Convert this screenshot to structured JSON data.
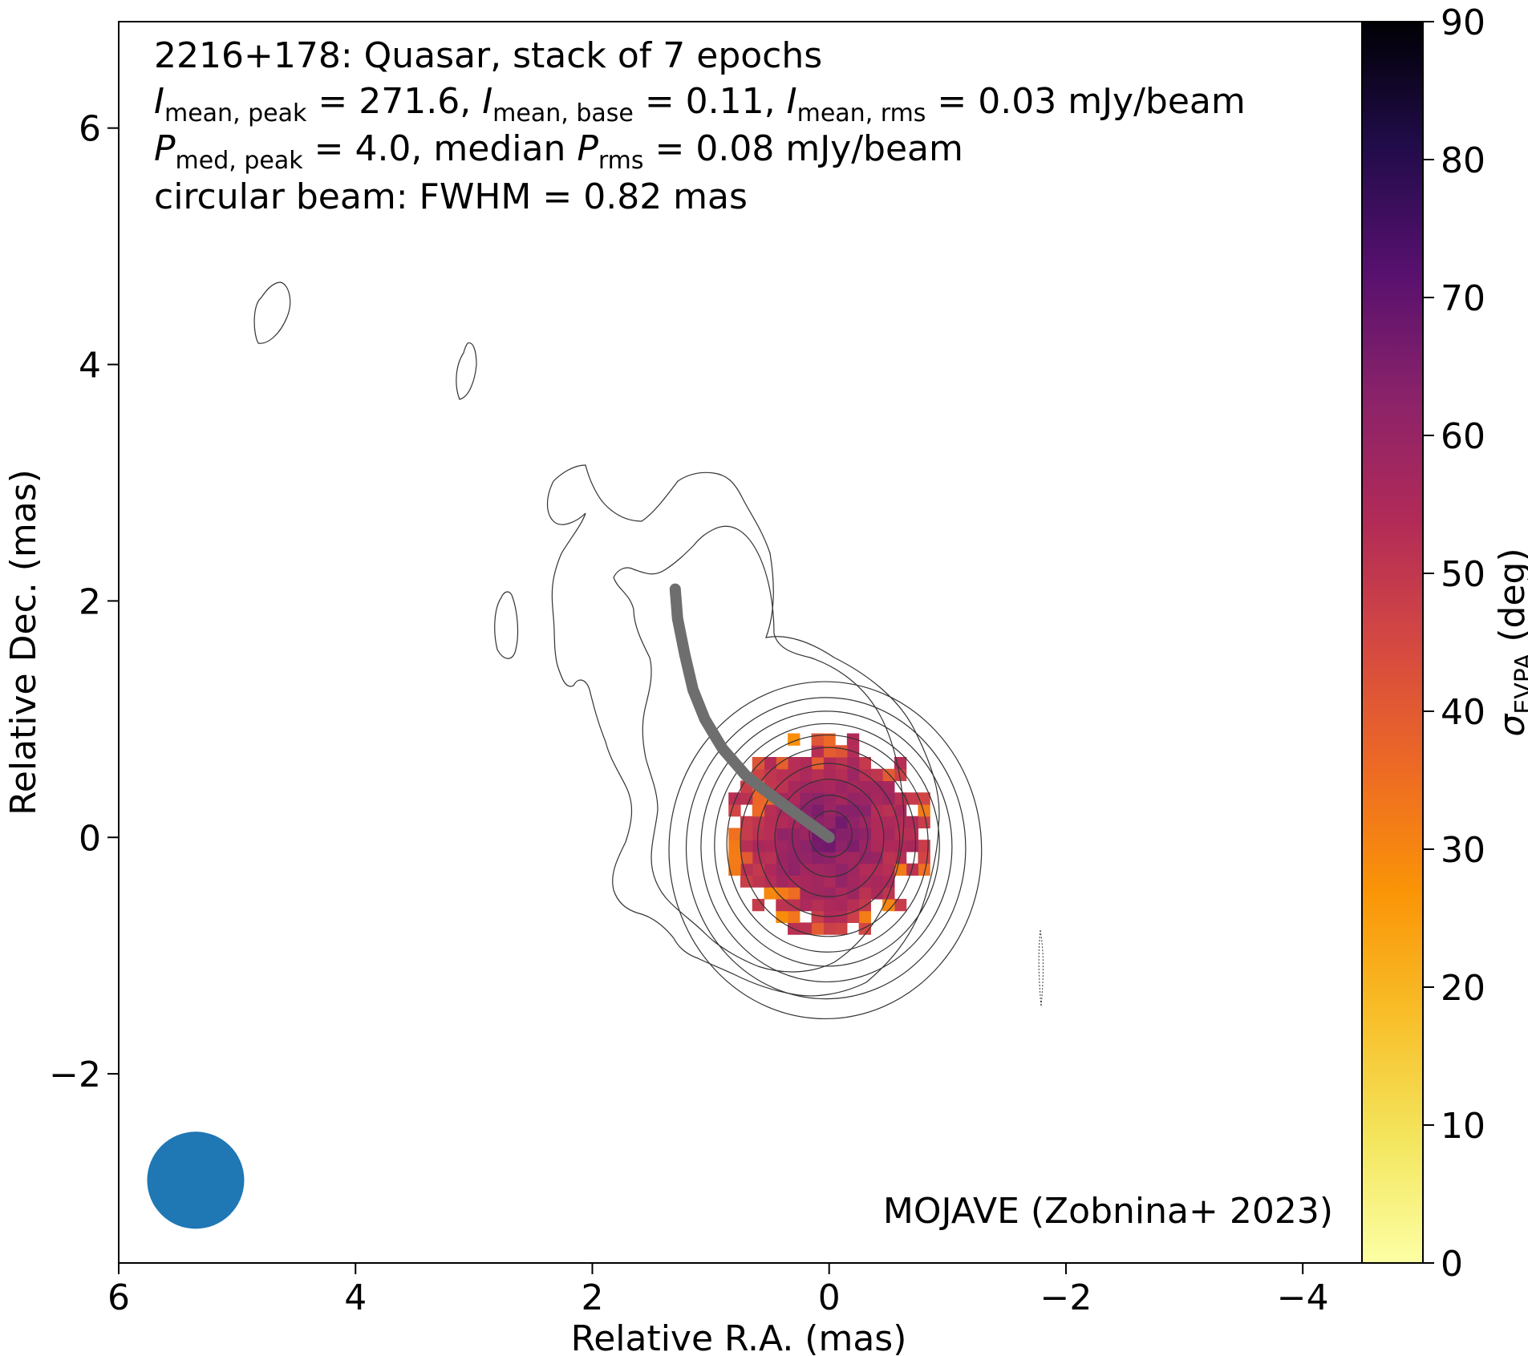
{
  "chart_data": {
    "type": "heatmap",
    "title_lines": {
      "line1": "2216+178: Quasar, stack of 7 epochs",
      "line2": {
        "i_peak_label": "I",
        "i_peak_sub": "mean, peak",
        "i_peak_value": " = 271.6, ",
        "i_base_label": "I",
        "i_base_sub": "mean, base",
        "i_base_value": " = 0.11, ",
        "i_rms_label": "I",
        "i_rms_sub": "mean, rms",
        "i_rms_value": " = 0.03 mJy/beam"
      },
      "line3": {
        "p_label": "P",
        "p_sub": "med, peak",
        "p_value": " = 4.0, median ",
        "prms_label": "P",
        "prms_sub": "rms",
        "prms_value": " = 0.08 mJy/beam"
      },
      "line4": "circular beam: FWHM = 0.82 mas"
    },
    "credit": "MOJAVE (Zobnina+ 2023)",
    "xlabel": "Relative R.A. (mas)",
    "ylabel": "Relative Dec. (mas)",
    "xlim": [
      6.0,
      -4.5
    ],
    "ylim": [
      -3.6,
      6.9
    ],
    "xticks": [
      6,
      4,
      2,
      0,
      -2,
      -4
    ],
    "xtick_labels": [
      "6",
      "4",
      "2",
      "0",
      "−2",
      "−4"
    ],
    "yticks": [
      -2,
      0,
      2,
      4,
      6
    ],
    "ytick_labels": [
      "−2",
      "0",
      "2",
      "4",
      "6"
    ],
    "colorbar": {
      "label_symbol": "σ",
      "label_sub": "EVPA",
      "label_unit": " (deg)",
      "range": [
        0,
        90
      ],
      "ticks": [
        0,
        10,
        20,
        30,
        40,
        50,
        60,
        70,
        80,
        90
      ],
      "colormap": "inferno_r"
    },
    "beam": {
      "x": 5.35,
      "y": -2.9,
      "fwhm": 0.82,
      "color": "#1f77b4"
    },
    "ridge_line": {
      "color": "#6e6e6e",
      "points": [
        [
          1.3,
          2.1
        ],
        [
          1.28,
          1.85
        ],
        [
          1.22,
          1.55
        ],
        [
          1.15,
          1.25
        ],
        [
          1.05,
          1.0
        ],
        [
          0.9,
          0.75
        ],
        [
          0.7,
          0.52
        ],
        [
          0.48,
          0.35
        ],
        [
          0.25,
          0.18
        ],
        [
          0.0,
          0.0
        ]
      ]
    },
    "heatmap_description": "Fractional EVPA uncertainty map centred on the core, radius about 0.85 mas; core values 60-70 deg, edge values 40-60 deg with scattered 30-40 deg pixels",
    "contour_levels_count": 10
  }
}
